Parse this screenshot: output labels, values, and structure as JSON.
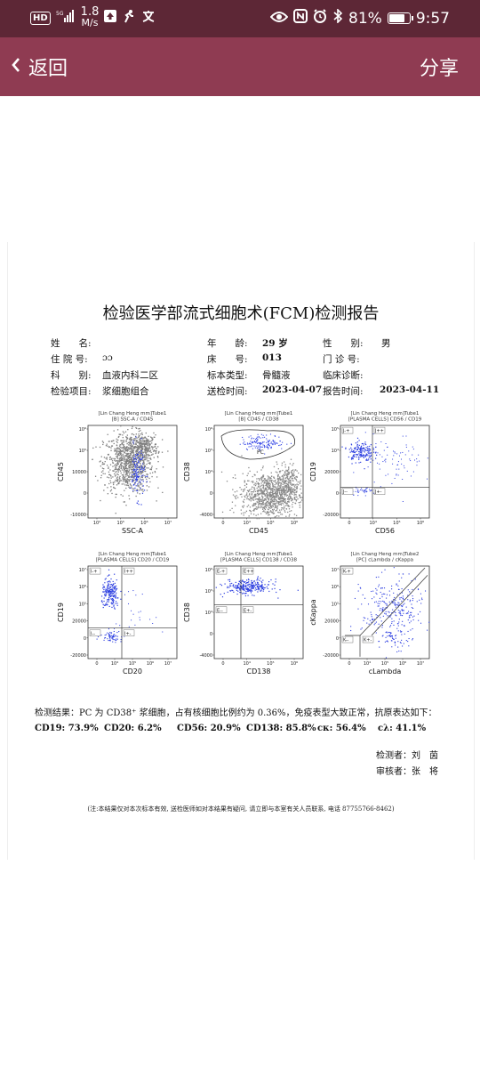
{
  "status_bar": {
    "hd": "HD",
    "network": "5G",
    "speed_value": "1.8",
    "speed_unit": "M/s",
    "battery": "81%",
    "battery_level": 0.81,
    "time": "9:57"
  },
  "nav": {
    "back_label": "返回",
    "share_label": "分享",
    "bg_color": "#8f3b52"
  },
  "report": {
    "title": "检验医学部流式细胞术(FCM)检测报告",
    "fields": {
      "name_label": "姓　　名:",
      "age_label": "年　　龄:",
      "age_value": "29 岁",
      "sex_label": "性　　别:",
      "sex_value": "男",
      "admission_label": "住 院 号:",
      "admission_value": "ɔɔ",
      "bed_label": "床　　号:",
      "bed_value": "013",
      "outpatient_label": "门 诊 号:",
      "dept_label": "科　　别:",
      "dept_value": "血液内科二区",
      "specimen_label": "标本类型:",
      "specimen_value": "骨髓液",
      "diagnosis_label": "临床诊断:",
      "item_label": "检验项目:",
      "item_value": "浆细胞组合",
      "sent_label": "送检时间:",
      "sent_value": "2023-04-07",
      "report_time_label": "报告时间:",
      "report_time_value": "2023-04-11"
    },
    "plots": [
      {
        "line1": "[Lin Chang Heng mm]Tube1",
        "line2": "[B] SSC-A / CD45",
        "xlabel": "SSC-A",
        "ylabel": "CD45",
        "yticks": [
          "10⁶",
          "10⁵",
          "10000",
          "0",
          "-10000"
        ],
        "xticks": [
          "10⁴",
          "10⁵",
          "10⁶",
          "10⁷"
        ],
        "gates": []
      },
      {
        "line1": "[Lin Chang Heng mm]Tube1",
        "line2": "[B] CD45 / CD38",
        "xlabel": "CD45",
        "ylabel": "CD38",
        "yticks": [
          "10⁶",
          "10⁵",
          "10⁴",
          "0",
          "-4000"
        ],
        "xticks": [
          "0",
          "10⁴",
          "10⁵",
          "10⁶"
        ],
        "gates": [
          "PC"
        ]
      },
      {
        "line1": "[Lin Chang Heng mm]Tube1",
        "line2": "[PLASMA CELLS] CD56 / CD19",
        "xlabel": "CD56",
        "ylabel": "CD19",
        "yticks": [
          "10⁵",
          "10⁴",
          "20000",
          "0",
          "-20000"
        ],
        "xticks": [
          "0",
          "10⁴",
          "10⁵",
          "10⁶"
        ],
        "gates": [
          "J-+",
          "J++",
          "J--",
          "J+-"
        ]
      },
      {
        "line1": "[Lin Chang Heng mm]Tube1",
        "line2": "[PLASMA CELLS] CD20 / CD19",
        "xlabel": "CD20",
        "ylabel": "CD19",
        "yticks": [
          "10⁷",
          "10⁶",
          "10⁵",
          "20000",
          "0",
          "-20000"
        ],
        "xticks": [
          "0",
          "10⁴",
          "10⁵",
          "10⁶",
          "10⁷"
        ],
        "gates": [
          "I-+",
          "I++",
          "I--",
          "I+-"
        ]
      },
      {
        "line1": "[Lin Chang Heng mm]Tube1",
        "line2": "[PLASMA CELLS] CD138 / CD38",
        "xlabel": "CD138",
        "ylabel": "CD38",
        "yticks": [
          "10⁶",
          "10⁵",
          "10⁴",
          "0",
          "-4000"
        ],
        "xticks": [
          "0",
          "10⁴",
          "10⁵",
          "10⁶"
        ],
        "gates": [
          "E-+",
          "E++",
          "E--",
          "E+-"
        ]
      },
      {
        "line1": "[PC] cLambda / cKappa",
        "line2": "",
        "line0": "[Lin Chang Heng mm]Tube2",
        "xlabel": "cLambda",
        "ylabel": "cKappa",
        "yticks": [
          "10⁷",
          "10⁶",
          "10⁵",
          "20000",
          "0",
          "-20000"
        ],
        "xticks": [
          "0",
          "10⁴",
          "10⁵",
          "10⁶",
          "10⁷"
        ],
        "gates": [
          "K-+",
          "K--",
          "K+-"
        ]
      }
    ],
    "result_text": "检测结果：PC 为 CD38⁺ 浆细胞，占有核细胞比例约为 0.36%，免疫表型大致正常，抗原表达如下：",
    "values": [
      "CD19: 73.9%",
      "CD20: 6.2%",
      "CD56: 20.9%",
      "CD138: 85.8%",
      "cκ: 56.4%",
      "cλ: 41.1%"
    ],
    "tester": "检测者：刘　茵",
    "reviewer": "审核者：张　将",
    "note": "(注:本结果仅对本次标本有效, 送检医师如对本结果有疑问, 请立即与本室有关人员联系, 电话 87755766-8462)"
  }
}
